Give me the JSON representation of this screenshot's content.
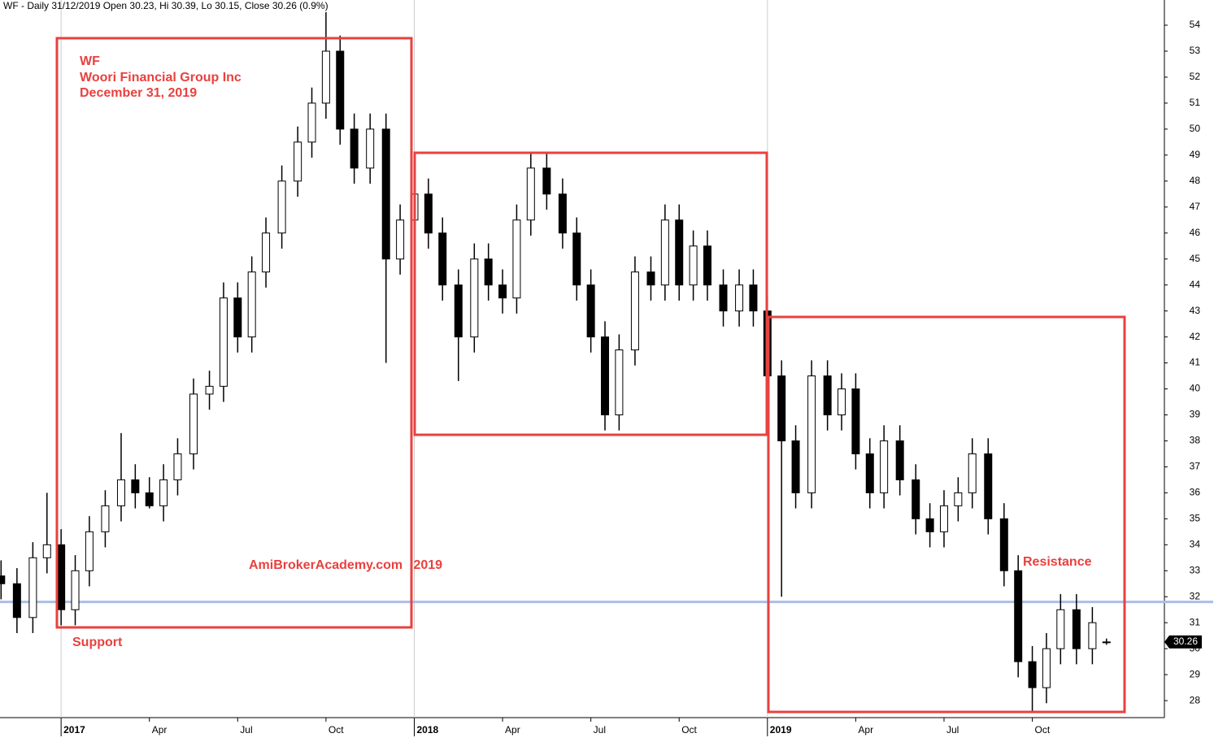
{
  "chart_data": {
    "type": "candlestick",
    "title": "WF - Daily 31/12/2019 Open 30.23, Hi 30.39, Lo 30.15, Close 30.26 (0.9%)",
    "annotations": [
      "WF",
      "Woori Financial Group Inc",
      "December 31, 2019",
      "AmiBrokerAcademy.com   2019",
      "Support",
      "Resistance"
    ],
    "x": [
      2016.83,
      2016.875,
      2016.92,
      2016.96,
      2017.0,
      2017.04,
      2017.08,
      2017.125,
      2017.17,
      2017.21,
      2017.25,
      2017.29,
      2017.33,
      2017.375,
      2017.42,
      2017.46,
      2017.5,
      2017.54,
      2017.58,
      2017.625,
      2017.67,
      2017.71,
      2017.75,
      2017.79,
      2017.83,
      2017.875,
      2017.92,
      2017.96,
      2018.0,
      2018.04,
      2018.08,
      2018.125,
      2018.17,
      2018.21,
      2018.25,
      2018.29,
      2018.33,
      2018.375,
      2018.42,
      2018.46,
      2018.5,
      2018.54,
      2018.58,
      2018.625,
      2018.67,
      2018.71,
      2018.75,
      2018.79,
      2018.83,
      2018.875,
      2018.92,
      2018.96,
      2019.0,
      2019.04,
      2019.08,
      2019.125,
      2019.17,
      2019.21,
      2019.25,
      2019.29,
      2019.33,
      2019.375,
      2019.42,
      2019.46,
      2019.5,
      2019.54,
      2019.58,
      2019.625,
      2019.67,
      2019.71,
      2019.75,
      2019.79,
      2019.83,
      2019.875,
      2019.92,
      2019.96
    ],
    "open": [
      32.8,
      32.5,
      31.2,
      33.5,
      34,
      31.5,
      33,
      34.5,
      35.5,
      36.5,
      36,
      35.5,
      36.5,
      37.5,
      39.8,
      40.1,
      43.5,
      42,
      44.5,
      46,
      48,
      49.5,
      51,
      53,
      50,
      48.5,
      50,
      45,
      46.5,
      47.5,
      46,
      44,
      42,
      45,
      44,
      43.5,
      46.5,
      48.5,
      47.5,
      46,
      44,
      42,
      39,
      41.5,
      44.5,
      44,
      46.5,
      44,
      45.5,
      44,
      43,
      44,
      43,
      40.5,
      38,
      36,
      40.5,
      39,
      40,
      37.5,
      36,
      38,
      36.5,
      35,
      34.5,
      35.5,
      36,
      37.5,
      35,
      33,
      29.5,
      28.5,
      30,
      31.5,
      30,
      30.23
    ],
    "high": [
      33.4,
      33.1,
      34.1,
      36,
      34.6,
      33.6,
      35.1,
      36.1,
      38.3,
      37.1,
      36.6,
      37.1,
      38.1,
      40.4,
      40.7,
      44.1,
      44.1,
      45.1,
      46.6,
      48.6,
      50.1,
      51.6,
      54.5,
      53.6,
      50.6,
      50.6,
      50.6,
      47.1,
      48.1,
      48.1,
      46.6,
      44.6,
      45.6,
      45.6,
      44.6,
      47.1,
      49.1,
      49.1,
      48.1,
      46.6,
      44.6,
      42.6,
      42.1,
      45.1,
      45.1,
      47.1,
      47.1,
      46.1,
      46.1,
      44.6,
      44.6,
      44.6,
      43.6,
      41.1,
      38.6,
      41.1,
      41.1,
      40.6,
      40.6,
      38.1,
      38.6,
      38.6,
      37.1,
      35.6,
      36.1,
      36.6,
      38.1,
      38.1,
      35.6,
      33.6,
      30.1,
      30.6,
      32.1,
      32.1,
      31.6,
      30.39
    ],
    "low": [
      31.9,
      30.6,
      30.6,
      32.9,
      30.9,
      30.9,
      32.4,
      33.9,
      34.9,
      35.4,
      35.4,
      34.9,
      35.9,
      36.9,
      39.2,
      39.5,
      41.4,
      41.4,
      43.9,
      45.4,
      47.4,
      48.9,
      50.4,
      49.4,
      47.9,
      47.9,
      41,
      44.4,
      45.9,
      45.4,
      43.4,
      40.3,
      41.4,
      43.4,
      42.9,
      42.9,
      45.9,
      46.9,
      45.4,
      43.4,
      41.4,
      38.4,
      38.4,
      40.9,
      43.4,
      43.4,
      43.4,
      43.4,
      43.4,
      42.4,
      42.4,
      42.4,
      39.9,
      32,
      35.4,
      35.4,
      38.4,
      38.4,
      36.9,
      35.4,
      35.4,
      35.9,
      34.4,
      33.9,
      33.9,
      34.9,
      35.4,
      34.4,
      32.4,
      28.9,
      27.6,
      27.9,
      29.4,
      29.4,
      29.4,
      30.15
    ],
    "close": [
      32.5,
      31.2,
      33.5,
      34,
      31.5,
      33,
      34.5,
      35.5,
      36.5,
      36,
      35.5,
      36.5,
      37.5,
      39.8,
      40.1,
      43.5,
      42,
      44.5,
      46,
      48,
      49.5,
      51,
      53,
      50,
      48.5,
      50,
      45,
      46.5,
      47.5,
      46,
      44,
      42,
      45,
      44,
      43.5,
      46.5,
      48.5,
      47.5,
      46,
      44,
      42,
      39,
      41.5,
      44.5,
      44,
      46.5,
      44,
      45.5,
      44,
      43,
      44,
      43,
      40.5,
      38,
      36,
      40.5,
      39,
      40,
      37.5,
      36,
      38,
      36.5,
      35,
      34.5,
      35.5,
      36,
      37.5,
      35,
      33,
      29.5,
      28.5,
      30,
      31.5,
      30,
      31,
      30.26
    ],
    "up_color": "#ffffff",
    "down_color": "#000000",
    "level": 31.8,
    "level_color": "#a9bde6",
    "last_price": 30.26,
    "xlim": [
      2016.827,
      2020.124
    ],
    "xticks": [
      {
        "value": 2017,
        "label": "2017"
      },
      {
        "value": 2017.25,
        "label": "Apr"
      },
      {
        "value": 2017.5,
        "label": "Jul"
      },
      {
        "value": 2017.75,
        "label": "Oct"
      },
      {
        "value": 2018,
        "label": "2018"
      },
      {
        "value": 2018.25,
        "label": "Apr"
      },
      {
        "value": 2018.5,
        "label": "Jul"
      },
      {
        "value": 2018.75,
        "label": "Oct"
      },
      {
        "value": 2019,
        "label": "2019"
      },
      {
        "value": 2019.25,
        "label": "Apr"
      },
      {
        "value": 2019.5,
        "label": "Jul"
      },
      {
        "value": 2019.75,
        "label": "Oct"
      }
    ],
    "ylim": [
      27.44,
      54.97
    ],
    "yticks": [
      28,
      29,
      30,
      31,
      32,
      33,
      34,
      35,
      36,
      37,
      38,
      39,
      40,
      41,
      42,
      43,
      44,
      45,
      46,
      47,
      48,
      49,
      50,
      51,
      52,
      53,
      54
    ]
  }
}
